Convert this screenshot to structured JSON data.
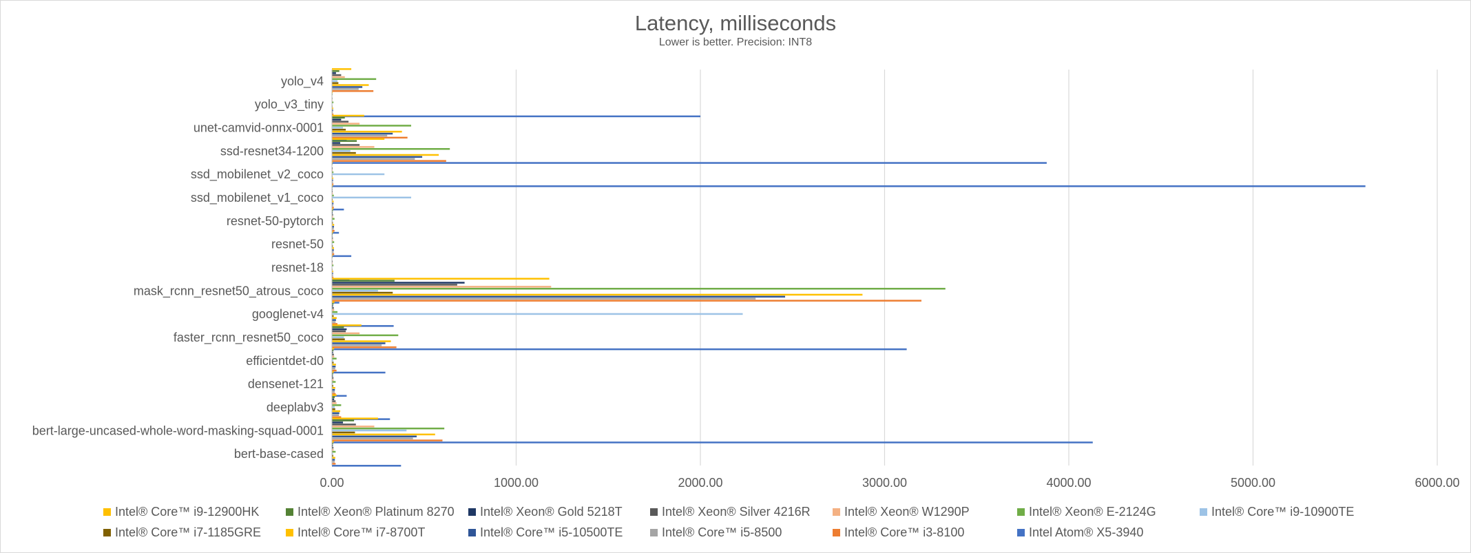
{
  "chart_data": {
    "type": "bar",
    "orientation": "horizontal",
    "title": "Latency, milliseconds",
    "subtitle": "Lower is better. Precision: INT8",
    "xlabel": "",
    "ylabel": "",
    "xlim": [
      0,
      6000
    ],
    "x_ticks": [
      "0.00",
      "1000.00",
      "2000.00",
      "3000.00",
      "4000.00",
      "5000.00",
      "6000.00"
    ],
    "grid": "vertical",
    "legend_position": "bottom",
    "categories": [
      "yolo_v4",
      "yolo_v3_tiny",
      "unet-camvid-onnx-0001",
      "ssd-resnet34-1200",
      "ssd_mobilenet_v2_coco",
      "ssd_mobilenet_v1_coco",
      "resnet-50-pytorch",
      "resnet-50",
      "resnet-18",
      "mask_rcnn_resnet50_atrous_coco",
      "googlenet-v4",
      "faster_rcnn_resnet50_coco",
      "efficientdet-d0",
      "densenet-121",
      "deeplabv3",
      "bert-large-uncased-whole-word-masking-squad-0001",
      "bert-base-cased"
    ],
    "series": [
      {
        "name": "Intel® Core™ i9-12900HK",
        "color": "#FFC000",
        "values": [
          105,
          4,
          175,
          285,
          4,
          5,
          7,
          7,
          5,
          1180,
          14,
          160,
          12,
          10,
          25,
          250,
          10
        ]
      },
      {
        "name": "Intel® Xeon® Platinum 8270",
        "color": "#548235",
        "values": [
          40,
          3,
          70,
          135,
          3,
          3,
          5,
          4,
          3,
          340,
          8,
          65,
          8,
          6,
          15,
          120,
          6
        ]
      },
      {
        "name": "Intel® Xeon® Gold 5218T",
        "color": "#1F3864",
        "values": [
          22,
          2,
          50,
          45,
          2,
          3,
          4,
          3,
          2,
          720,
          6,
          80,
          6,
          5,
          12,
          60,
          5
        ]
      },
      {
        "name": "Intel® Xeon® Silver 4216R",
        "color": "#595959",
        "values": [
          50,
          3,
          90,
          150,
          4,
          4,
          6,
          5,
          4,
          680,
          10,
          75,
          10,
          8,
          20,
          130,
          8
        ]
      },
      {
        "name": "Intel® Xeon® W1290P",
        "color": "#F4B183",
        "values": [
          70,
          3,
          150,
          230,
          4,
          5,
          6,
          6,
          4,
          1190,
          12,
          150,
          12,
          9,
          25,
          230,
          9
        ]
      },
      {
        "name": "Intel® Xeon® E-2124G",
        "color": "#70AD47",
        "values": [
          240,
          8,
          430,
          640,
          8,
          10,
          14,
          12,
          8,
          3330,
          30,
          360,
          25,
          20,
          50,
          610,
          20
        ]
      },
      {
        "name": "Intel® Core™ i9-10900TE",
        "color": "#9DC3E6",
        "values": [
          30,
          3,
          60,
          100,
          285,
          430,
          5,
          4,
          3,
          250,
          2230,
          65,
          8,
          6,
          15,
          405,
          6
        ]
      },
      {
        "name": "Intel® Core™ i7-1185GRE",
        "color": "#806000",
        "values": [
          35,
          3,
          75,
          130,
          3,
          4,
          5,
          5,
          3,
          330,
          9,
          70,
          9,
          7,
          18,
          125,
          7
        ]
      },
      {
        "name": "Intel® Core™ i7-8700T",
        "color": "#FFC000",
        "values": [
          200,
          7,
          380,
          580,
          7,
          9,
          12,
          11,
          7,
          2880,
          26,
          320,
          22,
          18,
          45,
          560,
          18
        ]
      },
      {
        "name": "Intel® Core™ i5-10500TE",
        "color": "#2F5597",
        "values": [
          165,
          6,
          330,
          490,
          6,
          8,
          11,
          10,
          6,
          2460,
          22,
          290,
          20,
          16,
          40,
          460,
          16
        ]
      },
      {
        "name": "Intel® Core™ i5-8500",
        "color": "#A5A5A5",
        "values": [
          145,
          5,
          300,
          450,
          6,
          7,
          10,
          9,
          6,
          2300,
          20,
          270,
          18,
          15,
          38,
          440,
          15
        ]
      },
      {
        "name": "Intel® Core™ i3-8100",
        "color": "#ED7D31",
        "values": [
          225,
          8,
          410,
          620,
          8,
          10,
          14,
          12,
          8,
          3200,
          30,
          350,
          25,
          20,
          50,
          600,
          20
        ]
      },
      {
        "name": "Intel Atom®  X5-3940",
        "color": "#4472C4",
        "values": [
          2,
          2000,
          80,
          3880,
          5610,
          65,
          38,
          105,
          95,
          40,
          335,
          3120,
          290,
          80,
          315,
          4130,
          375
        ]
      }
    ]
  }
}
